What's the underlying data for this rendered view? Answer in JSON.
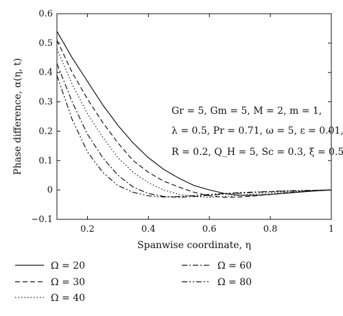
{
  "chart_data": {
    "type": "line",
    "title": "",
    "xlabel": "Spanwise coordinate, η",
    "ylabel": "Phase difference, α(η, t)",
    "xlim": [
      0.1,
      1.0
    ],
    "ylim": [
      -0.1,
      0.6
    ],
    "x_ticks": [
      0.2,
      0.4,
      0.6,
      0.8,
      1.0
    ],
    "x_tick_labels": [
      "0.2",
      "0.4",
      "0.6",
      "0.8",
      "1"
    ],
    "y_ticks": [
      -0.1,
      0,
      0.1,
      0.2,
      0.3,
      0.4,
      0.5,
      0.6
    ],
    "y_tick_labels": [
      "−0.1",
      "0",
      "0.1",
      "0.2",
      "0.3",
      "0.4",
      "0.5",
      "0.6"
    ],
    "grid": false,
    "legend_position": "bottom",
    "annotations": [
      "Gr = 5, Gm = 5, M = 2, m = 1,",
      "λ = 0.5, Pr = 0.71, ω = 5, ε = 0.01,",
      "R = 0.2, Q_H = 5, Sc = 0.3, ξ = 0.5"
    ],
    "series": [
      {
        "name": "Ω = 20",
        "dash": "solid",
        "x": [
          0.1,
          0.15,
          0.2,
          0.25,
          0.3,
          0.35,
          0.4,
          0.45,
          0.5,
          0.55,
          0.6,
          0.65,
          0.7,
          0.75,
          0.8,
          0.85,
          0.9,
          0.95,
          1.0
        ],
        "y": [
          0.54,
          0.45,
          0.37,
          0.29,
          0.22,
          0.16,
          0.11,
          0.07,
          0.04,
          0.015,
          0.0,
          -0.012,
          -0.018,
          -0.018,
          -0.015,
          -0.011,
          -0.007,
          -0.003,
          0.0
        ]
      },
      {
        "name": "Ω = 30",
        "dash": "dashed",
        "x": [
          0.1,
          0.15,
          0.2,
          0.25,
          0.3,
          0.35,
          0.4,
          0.45,
          0.5,
          0.55,
          0.6,
          0.65,
          0.7,
          0.75,
          0.8,
          0.85,
          0.9,
          0.95,
          1.0
        ],
        "y": [
          0.51,
          0.4,
          0.31,
          0.23,
          0.16,
          0.1,
          0.06,
          0.03,
          0.01,
          -0.008,
          -0.02,
          -0.025,
          -0.024,
          -0.02,
          -0.015,
          -0.01,
          -0.006,
          -0.003,
          0.0
        ]
      },
      {
        "name": "Ω = 40",
        "dash": "dotted",
        "x": [
          0.1,
          0.15,
          0.2,
          0.25,
          0.3,
          0.35,
          0.4,
          0.45,
          0.5,
          0.55,
          0.6,
          0.65,
          0.7,
          0.75,
          0.8,
          0.85,
          0.9,
          0.95,
          1.0
        ],
        "y": [
          0.48,
          0.36,
          0.26,
          0.18,
          0.11,
          0.06,
          0.025,
          0.0,
          -0.015,
          -0.022,
          -0.025,
          -0.022,
          -0.018,
          -0.014,
          -0.01,
          -0.007,
          -0.004,
          -0.002,
          0.0
        ]
      },
      {
        "name": "Ω = 60",
        "dash": "dashdot",
        "x": [
          0.1,
          0.15,
          0.2,
          0.25,
          0.3,
          0.35,
          0.4,
          0.45,
          0.5,
          0.55,
          0.6,
          0.65,
          0.7,
          0.75,
          0.8,
          0.85,
          0.9,
          0.95,
          1.0
        ],
        "y": [
          0.43,
          0.3,
          0.19,
          0.11,
          0.05,
          0.01,
          -0.012,
          -0.022,
          -0.025,
          -0.022,
          -0.018,
          -0.014,
          -0.011,
          -0.008,
          -0.006,
          -0.004,
          -0.003,
          -0.001,
          0.0
        ]
      },
      {
        "name": "Ω = 80",
        "dash": "dashdotdot",
        "x": [
          0.1,
          0.15,
          0.2,
          0.25,
          0.3,
          0.35,
          0.4,
          0.45,
          0.5,
          0.55,
          0.6,
          0.65,
          0.7,
          0.75,
          0.8,
          0.85,
          0.9,
          0.95,
          1.0
        ],
        "y": [
          0.39,
          0.24,
          0.13,
          0.06,
          0.015,
          -0.008,
          -0.02,
          -0.024,
          -0.022,
          -0.019,
          -0.015,
          -0.012,
          -0.009,
          -0.007,
          -0.005,
          -0.003,
          -0.002,
          -0.001,
          0.0
        ]
      }
    ]
  }
}
